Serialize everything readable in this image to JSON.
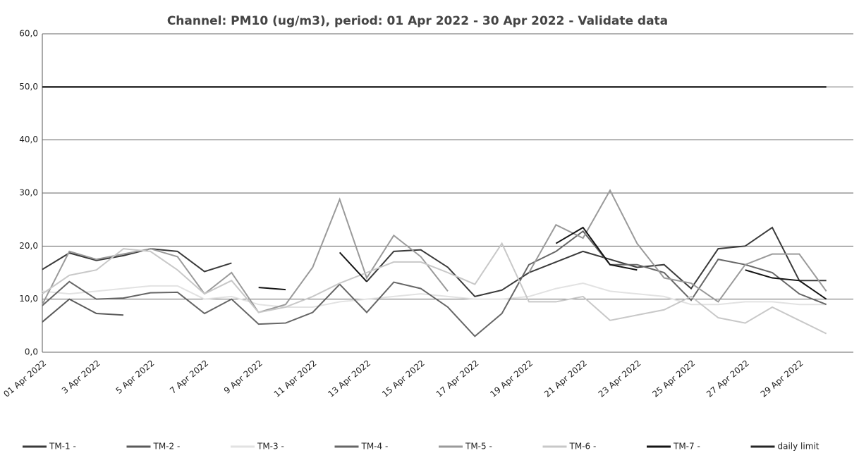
{
  "chart_data": {
    "type": "line",
    "title": "Channel: PM10 (ug/m3), period: 01 Apr 2022 - 30 Apr 2022 - Validate data",
    "categories": [
      "01 Apr 2022",
      null,
      "3 Apr 2022",
      null,
      "5 Apr 2022",
      null,
      "7 Apr 2022",
      null,
      "9 Apr 2022",
      null,
      "11 Apr 2022",
      null,
      "13 Apr 2022",
      null,
      "15 Apr 2022",
      null,
      "17 Apr 2022",
      null,
      "19 Apr 2022",
      null,
      "21 Apr 2022",
      null,
      "23 Apr 2022",
      null,
      "25 Apr 2022",
      null,
      "27 Apr 2022",
      null,
      "29 Apr 2022",
      null
    ],
    "ylim": [
      0,
      60
    ],
    "yticks": [
      {
        "value": 0,
        "label": "0,0"
      },
      {
        "value": 10,
        "label": "10,0"
      },
      {
        "value": 20,
        "label": "20,0"
      },
      {
        "value": 30,
        "label": "30,0"
      },
      {
        "value": 40,
        "label": "40,0"
      },
      {
        "value": 50,
        "label": "50,0"
      },
      {
        "value": 60,
        "label": "60,0"
      }
    ],
    "grid": true,
    "series": [
      {
        "name": "TM-1 -",
        "color": "#3a3a3a",
        "values": [
          15.6,
          18.7,
          17.3,
          18.2,
          19.5,
          19,
          15.2,
          16.8,
          null,
          null,
          null,
          null,
          13.3,
          19,
          19.3,
          16,
          10.5,
          11.7,
          15,
          17,
          19,
          17.5,
          16,
          16.5,
          12,
          19.5,
          20,
          23.5,
          13.5,
          13.5
        ]
      },
      {
        "name": "TM-2 -",
        "color": "#5a5a5a",
        "values": [
          5.7,
          10,
          7.3,
          7,
          null,
          null,
          null,
          null,
          null,
          null,
          null,
          null,
          null,
          null,
          null,
          null,
          null,
          null,
          null,
          null,
          null,
          null,
          null,
          null,
          null,
          null,
          null,
          null,
          null,
          null
        ]
      },
      {
        "name": "TM-3 -",
        "color": "#e2e2e2",
        "values": [
          11.5,
          11,
          11.5,
          12,
          12.5,
          12.5,
          10,
          10.5,
          9,
          8.5,
          8.5,
          9.5,
          10,
          10.5,
          11,
          10.5,
          10,
          10,
          10.5,
          12,
          13,
          11.5,
          11,
          10.5,
          9,
          9,
          9.5,
          9.5,
          9,
          9
        ]
      },
      {
        "name": "TM-4 -",
        "color": "#666666",
        "values": [
          8.8,
          13.3,
          10,
          10.2,
          11.2,
          11.3,
          7.3,
          10,
          5.3,
          5.5,
          7.5,
          12.8,
          7.5,
          13.2,
          12,
          8.5,
          3,
          7.3,
          16.5,
          19,
          22.8,
          16.5,
          16.5,
          15,
          9.8,
          17.5,
          16.5,
          15,
          11,
          9
        ]
      },
      {
        "name": "TM-5 -",
        "color": "#9a9a9a",
        "values": [
          9,
          19,
          17.5,
          18.5,
          19.5,
          18,
          11,
          15,
          7.5,
          9,
          16,
          28.8,
          14,
          22,
          18,
          11.5,
          null,
          null,
          15,
          24,
          21.5,
          30.5,
          20.5,
          14,
          13,
          9.5,
          16.5,
          18.5,
          18.5,
          11.5
        ]
      },
      {
        "name": "TM-6 -",
        "color": "#c8c8c8",
        "values": [
          11,
          14.5,
          15.5,
          19.5,
          19,
          15.5,
          11,
          13.5,
          7.5,
          8.5,
          10.5,
          13,
          15,
          17,
          17,
          15,
          12.8,
          20.5,
          9.5,
          9.5,
          10.5,
          6,
          7,
          8,
          10.5,
          6.5,
          5.5,
          8.5,
          6,
          3.5
        ]
      },
      {
        "name": "TM-7 -",
        "color": "#141414",
        "values": [
          null,
          null,
          null,
          null,
          null,
          null,
          null,
          null,
          12.2,
          11.8,
          null,
          18.8,
          13.3,
          null,
          null,
          null,
          null,
          null,
          null,
          20.5,
          23.5,
          16.5,
          15.5,
          null,
          null,
          null,
          15.5,
          14,
          13.5,
          10
        ]
      },
      {
        "name": "daily limit",
        "color": "#262626",
        "values": [
          50,
          50,
          50,
          50,
          50,
          50,
          50,
          50,
          50,
          50,
          50,
          50,
          50,
          50,
          50,
          50,
          50,
          50,
          50,
          50,
          50,
          50,
          50,
          50,
          50,
          50,
          50,
          50,
          50,
          50
        ]
      }
    ]
  }
}
